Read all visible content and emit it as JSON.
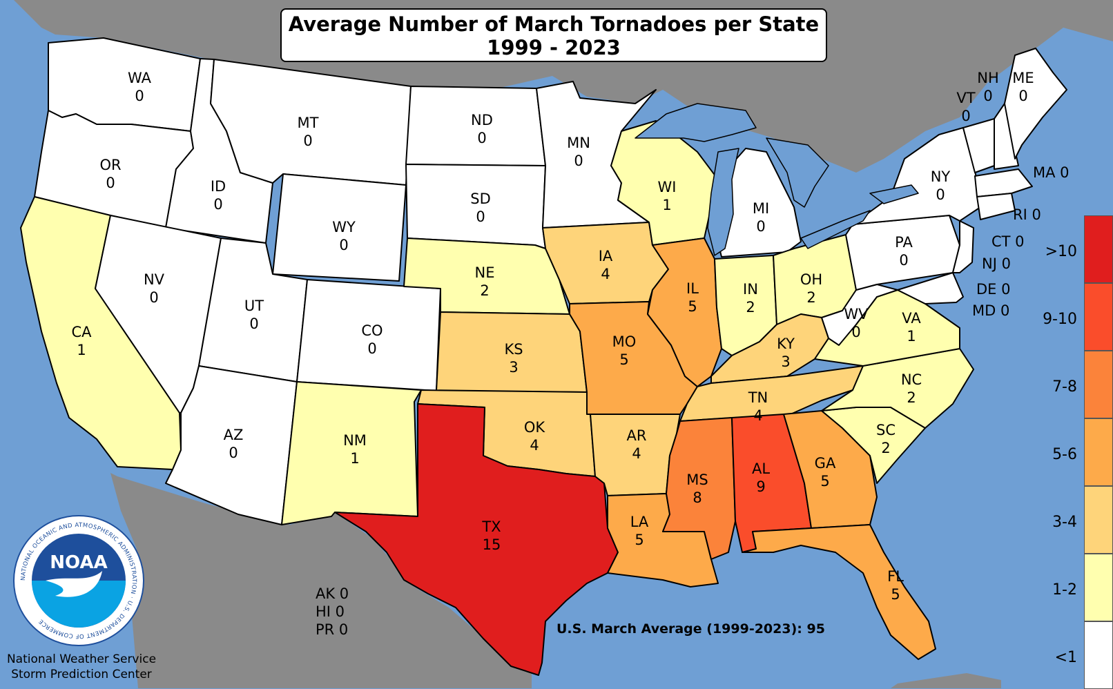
{
  "title": {
    "line1": "Average Number of March Tornadoes per State",
    "line2": "1999 - 2023"
  },
  "colors": {
    "ocean": "#6f9fd4",
    "land_outside": "#8a8a8a",
    "c0": "#ffffff",
    "c1": "#ffffaf",
    "c2": "#fed47a",
    "c3": "#fdaa4a",
    "c4": "#fb833a",
    "c5": "#fa4d2b",
    "c6": "#e01e1e"
  },
  "legend": [
    {
      "label": ">10",
      "color": "#e01e1e"
    },
    {
      "label": "9-10",
      "color": "#fa4d2b"
    },
    {
      "label": "7-8",
      "color": "#fb833a"
    },
    {
      "label": "5-6",
      "color": "#fdaa4a"
    },
    {
      "label": "3-4",
      "color": "#fed47a"
    },
    {
      "label": "1-2",
      "color": "#ffffaf"
    },
    {
      "label": "<1",
      "color": "#ffffff"
    }
  ],
  "states": {
    "WA": {
      "abbr": "WA",
      "value": "0"
    },
    "OR": {
      "abbr": "OR",
      "value": "0"
    },
    "CA": {
      "abbr": "CA",
      "value": "1"
    },
    "ID": {
      "abbr": "ID",
      "value": "0"
    },
    "NV": {
      "abbr": "NV",
      "value": "0"
    },
    "MT": {
      "abbr": "MT",
      "value": "0"
    },
    "WY": {
      "abbr": "WY",
      "value": "0"
    },
    "UT": {
      "abbr": "UT",
      "value": "0"
    },
    "AZ": {
      "abbr": "AZ",
      "value": "0"
    },
    "CO": {
      "abbr": "CO",
      "value": "0"
    },
    "NM": {
      "abbr": "NM",
      "value": "1"
    },
    "ND": {
      "abbr": "ND",
      "value": "0"
    },
    "SD": {
      "abbr": "SD",
      "value": "0"
    },
    "NE": {
      "abbr": "NE",
      "value": "2"
    },
    "KS": {
      "abbr": "KS",
      "value": "3"
    },
    "OK": {
      "abbr": "OK",
      "value": "4"
    },
    "TX": {
      "abbr": "TX",
      "value": "15"
    },
    "MN": {
      "abbr": "MN",
      "value": "0"
    },
    "IA": {
      "abbr": "IA",
      "value": "4"
    },
    "MO": {
      "abbr": "MO",
      "value": "5"
    },
    "AR": {
      "abbr": "AR",
      "value": "4"
    },
    "LA": {
      "abbr": "LA",
      "value": "5"
    },
    "WI": {
      "abbr": "WI",
      "value": "1"
    },
    "IL": {
      "abbr": "IL",
      "value": "5"
    },
    "MI": {
      "abbr": "MI",
      "value": "0"
    },
    "IN": {
      "abbr": "IN",
      "value": "2"
    },
    "OH": {
      "abbr": "OH",
      "value": "2"
    },
    "KY": {
      "abbr": "KY",
      "value": "3"
    },
    "TN": {
      "abbr": "TN",
      "value": "4"
    },
    "MS": {
      "abbr": "MS",
      "value": "8"
    },
    "AL": {
      "abbr": "AL",
      "value": "9"
    },
    "GA": {
      "abbr": "GA",
      "value": "5"
    },
    "FL": {
      "abbr": "FL",
      "value": "5"
    },
    "SC": {
      "abbr": "SC",
      "value": "2"
    },
    "NC": {
      "abbr": "NC",
      "value": "2"
    },
    "VA": {
      "abbr": "VA",
      "value": "1"
    },
    "WV": {
      "abbr": "WV",
      "value": "0"
    },
    "PA": {
      "abbr": "PA",
      "value": "0"
    },
    "NY": {
      "abbr": "NY",
      "value": "0"
    },
    "VT": {
      "abbr": "VT",
      "value": "0"
    },
    "NH": {
      "abbr": "NH",
      "value": "0"
    },
    "ME": {
      "abbr": "ME",
      "value": "0"
    }
  },
  "side_labels": {
    "MA": "MA 0",
    "RI": "RI 0",
    "CT": "CT 0",
    "NJ": "NJ 0",
    "DE": "DE 0",
    "MD": "MD 0"
  },
  "territories": {
    "AK": "AK 0",
    "HI": "HI 0",
    "PR": "PR 0"
  },
  "us_average": "U.S. March Average (1999-2023): 95",
  "credits": {
    "line1": "National Weather Service",
    "line2": "Storm Prediction Center"
  },
  "logo": {
    "text": "NOAA",
    "ring_text": "NATIONAL OCEANIC AND ATMOSPHERIC ADMINISTRATION · U.S. DEPARTMENT OF COMMERCE"
  }
}
